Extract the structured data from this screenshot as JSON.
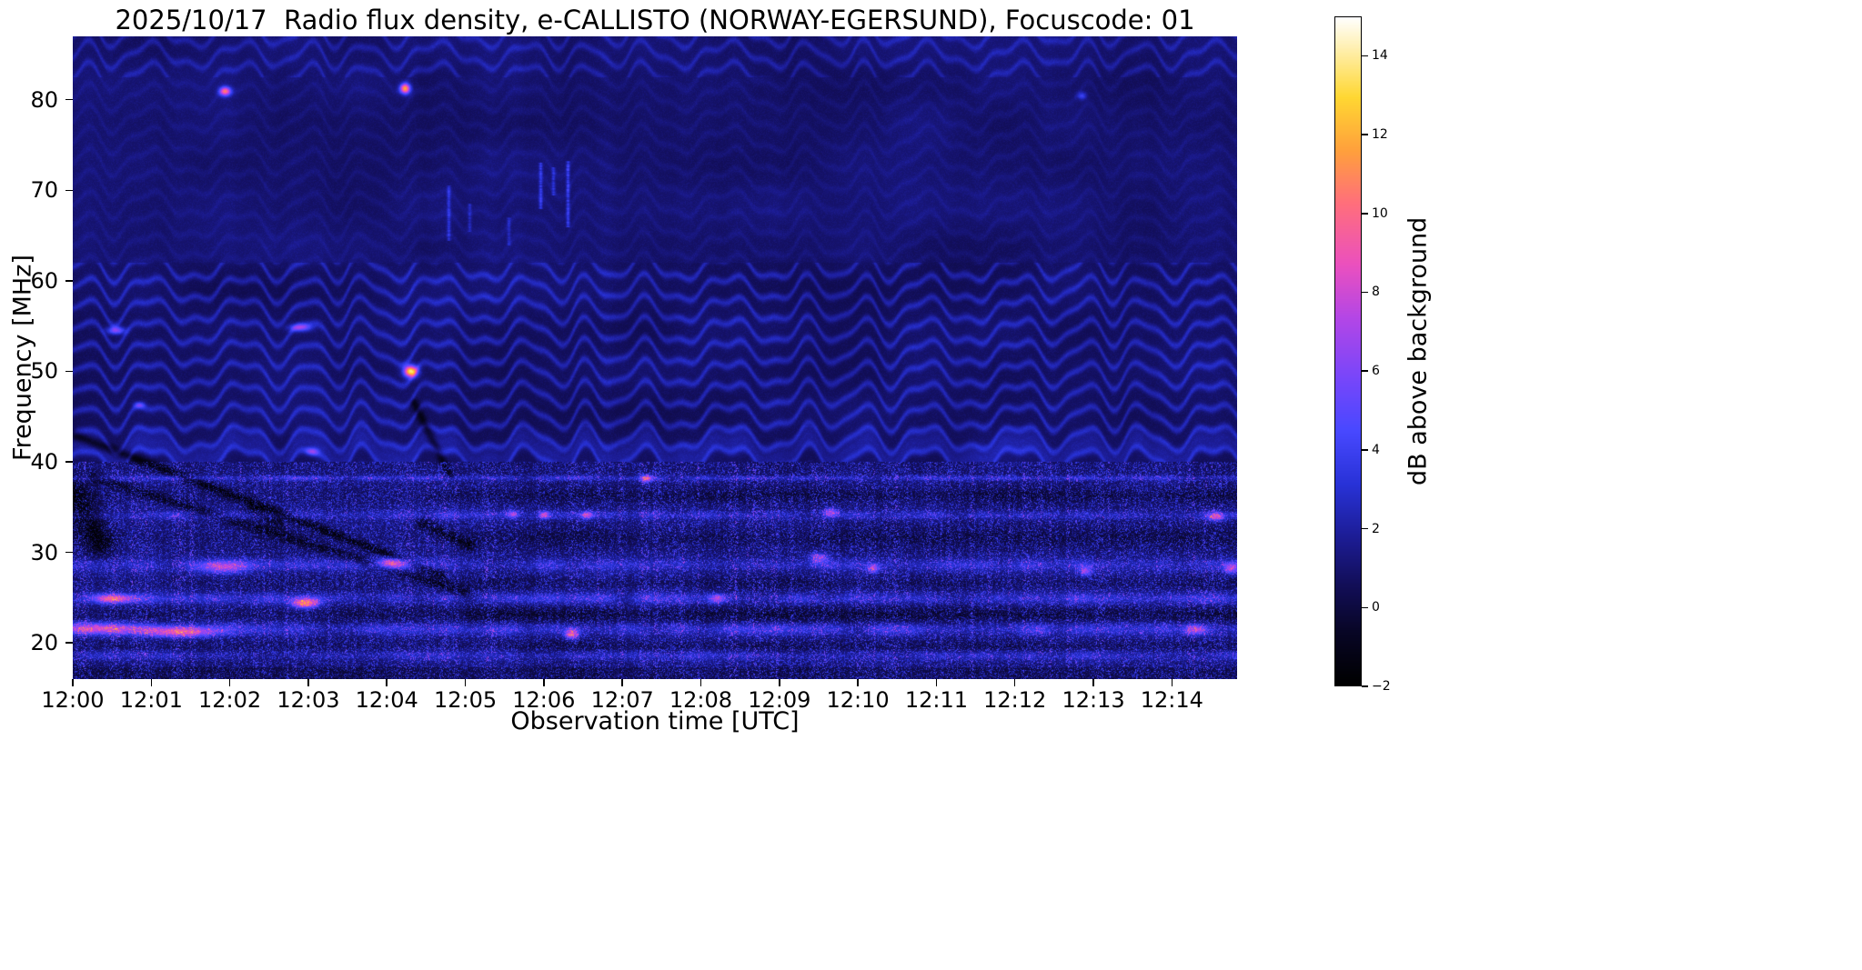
{
  "chart_data": {
    "type": "heatmap",
    "title": "2025/10/17  Radio flux density, e-CALLISTO (NORWAY-EGERSUND), Focuscode: 01",
    "xlabel": "Observation time [UTC]",
    "ylabel": "Frequency [MHz]",
    "x_ticks": [
      "12:00",
      "12:01",
      "12:02",
      "12:03",
      "12:04",
      "12:05",
      "12:06",
      "12:07",
      "12:08",
      "12:09",
      "12:10",
      "12:11",
      "12:12",
      "12:13",
      "12:14"
    ],
    "x_range_min": [
      0,
      14.83
    ],
    "y_ticks": [
      20,
      30,
      40,
      50,
      60,
      70,
      80
    ],
    "y_range_mhz": [
      16,
      87
    ],
    "value_range_db": [
      -2,
      15
    ],
    "grid": false,
    "colorbar": {
      "label": "dB above background",
      "tick_labels": [
        "−2",
        "0",
        "2",
        "4",
        "6",
        "8",
        "10",
        "12",
        "14"
      ],
      "tick_values": [
        -2,
        0,
        2,
        4,
        6,
        8,
        10,
        12,
        14
      ]
    },
    "colormap_stops": [
      {
        "p": 0.0,
        "c": [
          0,
          0,
          0
        ]
      },
      {
        "p": 0.08,
        "c": [
          8,
          6,
          38
        ]
      },
      {
        "p": 0.15,
        "c": [
          18,
          14,
          88
        ]
      },
      {
        "p": 0.22,
        "c": [
          28,
          28,
          148
        ]
      },
      {
        "p": 0.3,
        "c": [
          40,
          50,
          215
        ]
      },
      {
        "p": 0.38,
        "c": [
          72,
          72,
          255
        ]
      },
      {
        "p": 0.46,
        "c": [
          120,
          70,
          250
        ]
      },
      {
        "p": 0.55,
        "c": [
          180,
          70,
          230
        ]
      },
      {
        "p": 0.63,
        "c": [
          235,
          80,
          190
        ]
      },
      {
        "p": 0.72,
        "c": [
          255,
          110,
          125
        ]
      },
      {
        "p": 0.8,
        "c": [
          255,
          160,
          60
        ]
      },
      {
        "p": 0.88,
        "c": [
          255,
          215,
          50
        ]
      },
      {
        "p": 1.0,
        "c": [
          255,
          255,
          255
        ]
      }
    ],
    "features": {
      "ripples": {
        "spacing_mhz": 2.35,
        "wiggle_amp_mhz": 1.25,
        "wiggle_period_min": 0.9,
        "strong_band_mhz": [
          40,
          62
        ],
        "top_band_mhz": [
          82.5,
          87
        ],
        "faint_band_mhz": [
          62,
          82.5
        ]
      },
      "rfi_bands": [
        {
          "f": 38.2,
          "w": 0.2,
          "amp": 2.6
        },
        {
          "f": 34.1,
          "w": 0.35,
          "amp": 2.2
        },
        {
          "f": 28.6,
          "w": 0.5,
          "amp": 2.3
        },
        {
          "f": 24.9,
          "w": 0.45,
          "amp": 2.6
        },
        {
          "f": 21.5,
          "w": 0.5,
          "amp": 2.9
        },
        {
          "f": 18.6,
          "w": 0.4,
          "amp": 1.9
        }
      ],
      "dark_lanes": [
        {
          "f": 36.3,
          "w": 0.5,
          "amp": -0.9,
          "t0": 4.5
        },
        {
          "f": 31.6,
          "w": 0.7,
          "amp": -0.8,
          "t0": 5.0
        },
        {
          "f": 26.6,
          "w": 0.4,
          "amp": -0.6,
          "t0": 4.5
        },
        {
          "f": 23.1,
          "w": 0.55,
          "amp": -1.1,
          "t0": 5.0
        },
        {
          "f": 19.6,
          "w": 0.4,
          "amp": -0.7,
          "t0": 5.5
        }
      ],
      "dark_streaks": [
        {
          "t0": 0.0,
          "f0": 43.0,
          "t1": 4.7,
          "f1": 27.5,
          "w": 0.5,
          "amp": -2.3
        },
        {
          "t0": 0.25,
          "f0": 38.3,
          "t1": 5.0,
          "f1": 25.6,
          "w": 0.55,
          "amp": -1.7
        },
        {
          "t0": 4.35,
          "f0": 46.5,
          "t1": 4.8,
          "f1": 38.5,
          "w": 0.45,
          "amp": -1.9
        },
        {
          "t0": 0.0,
          "f0": 36.5,
          "t1": 0.35,
          "f1": 31.0,
          "w": 1.6,
          "amp": -2.2
        },
        {
          "t0": 2.3,
          "f0": 34.6,
          "t1": 2.6,
          "f1": 33.4,
          "w": 0.8,
          "amp": -1.8
        },
        {
          "t0": 4.45,
          "f0": 33.2,
          "t1": 5.05,
          "f1": 30.8,
          "w": 0.7,
          "amp": -2.0
        }
      ],
      "bright_spots": [
        {
          "t": 1.93,
          "f": 81.0,
          "wt": 0.05,
          "wf": 0.35,
          "amp": 9
        },
        {
          "t": 4.23,
          "f": 81.3,
          "wt": 0.045,
          "wf": 0.4,
          "amp": 11
        },
        {
          "t": 4.3,
          "f": 50.0,
          "wt": 0.06,
          "wf": 0.45,
          "amp": 13
        },
        {
          "t": 0.55,
          "f": 54.6,
          "wt": 0.08,
          "wf": 0.3,
          "amp": 5.5
        },
        {
          "t": 2.9,
          "f": 54.9,
          "wt": 0.1,
          "wf": 0.3,
          "amp": 5
        },
        {
          "t": 0.3,
          "f": 21.6,
          "wt": 0.45,
          "wf": 0.45,
          "amp": 6
        },
        {
          "t": 1.35,
          "f": 21.2,
          "wt": 0.3,
          "wf": 0.4,
          "amp": 6.5
        },
        {
          "t": 0.5,
          "f": 24.9,
          "wt": 0.18,
          "wf": 0.35,
          "amp": 7
        },
        {
          "t": 2.95,
          "f": 24.4,
          "wt": 0.12,
          "wf": 0.4,
          "amp": 8.5
        },
        {
          "t": 1.9,
          "f": 28.5,
          "wt": 0.22,
          "wf": 0.5,
          "amp": 5.5
        },
        {
          "t": 4.05,
          "f": 28.9,
          "wt": 0.15,
          "wf": 0.4,
          "amp": 6
        },
        {
          "t": 6.35,
          "f": 21.0,
          "wt": 0.06,
          "wf": 0.4,
          "amp": 7
        },
        {
          "t": 7.3,
          "f": 38.2,
          "wt": 0.05,
          "wf": 0.3,
          "amp": 6
        },
        {
          "t": 6.0,
          "f": 34.2,
          "wt": 0.05,
          "wf": 0.3,
          "amp": 5.5
        },
        {
          "t": 6.55,
          "f": 34.2,
          "wt": 0.05,
          "wf": 0.3,
          "amp": 5
        },
        {
          "t": 5.6,
          "f": 34.3,
          "wt": 0.05,
          "wf": 0.3,
          "amp": 4.5
        },
        {
          "t": 9.65,
          "f": 34.5,
          "wt": 0.06,
          "wf": 0.35,
          "amp": 5
        },
        {
          "t": 9.5,
          "f": 29.5,
          "wt": 0.08,
          "wf": 0.4,
          "amp": 4.5
        },
        {
          "t": 14.55,
          "f": 34.0,
          "wt": 0.07,
          "wf": 0.35,
          "amp": 5.5
        },
        {
          "t": 14.75,
          "f": 28.3,
          "wt": 0.06,
          "wf": 0.4,
          "amp": 5
        },
        {
          "t": 12.9,
          "f": 28.0,
          "wt": 0.05,
          "wf": 0.35,
          "amp": 4.5
        },
        {
          "t": 10.2,
          "f": 28.3,
          "wt": 0.05,
          "wf": 0.35,
          "amp": 4.5
        },
        {
          "t": 8.2,
          "f": 24.9,
          "wt": 0.07,
          "wf": 0.35,
          "amp": 5
        },
        {
          "t": 14.3,
          "f": 21.5,
          "wt": 0.1,
          "wf": 0.4,
          "amp": 5
        },
        {
          "t": 0.85,
          "f": 46.3,
          "wt": 0.05,
          "wf": 0.25,
          "amp": 3.5
        },
        {
          "t": 3.05,
          "f": 41.2,
          "wt": 0.06,
          "wf": 0.3,
          "amp": 4
        },
        {
          "t": 12.85,
          "f": 80.5,
          "wt": 0.04,
          "wf": 0.3,
          "amp": 3
        }
      ],
      "vertical_lines": [
        {
          "t": 4.78,
          "f0": 64.5,
          "f1": 70.5,
          "amp": 2.2
        },
        {
          "t": 5.05,
          "f0": 65.5,
          "f1": 68.5,
          "amp": 1.7
        },
        {
          "t": 5.55,
          "f0": 64.0,
          "f1": 67.0,
          "amp": 1.5
        },
        {
          "t": 5.95,
          "f0": 68.0,
          "f1": 73.0,
          "amp": 2.6
        },
        {
          "t": 6.12,
          "f0": 69.5,
          "f1": 72.5,
          "amp": 2.0
        },
        {
          "t": 6.3,
          "f0": 66.0,
          "f1": 73.2,
          "amp": 2.8
        }
      ]
    }
  }
}
